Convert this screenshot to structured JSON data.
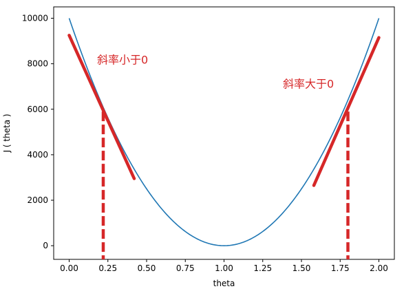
{
  "chart_data": {
    "type": "line",
    "title": "",
    "xlabel": "theta",
    "ylabel": "J ( theta )",
    "xlim": [
      -0.1,
      2.1
    ],
    "ylim": [
      -600,
      10500
    ],
    "x_ticks": [
      0.0,
      0.25,
      0.5,
      0.75,
      1.0,
      1.25,
      1.5,
      1.75,
      2.0
    ],
    "x_tick_labels": [
      "0.00",
      "0.25",
      "0.50",
      "0.75",
      "1.00",
      "1.25",
      "1.50",
      "1.75",
      "2.00"
    ],
    "y_ticks": [
      0,
      2000,
      4000,
      6000,
      8000,
      10000
    ],
    "y_tick_labels": [
      "0",
      "2000",
      "4000",
      "6000",
      "8000",
      "10000"
    ],
    "grid": false,
    "series": [
      {
        "color": "#1f77b4",
        "function": "10000*(x-1)^2",
        "x_range": [
          0,
          2
        ]
      }
    ],
    "tangent_lines": [
      {
        "x": [
          0.0,
          0.42
        ],
        "y": [
          9250,
          2950
        ],
        "color": "#d62728"
      },
      {
        "x": [
          1.58,
          2.0
        ],
        "y": [
          2650,
          9150
        ],
        "color": "#d62728"
      }
    ],
    "dashed_lines": [
      {
        "x": 0.22,
        "y_top": 5900,
        "color": "#d62728"
      },
      {
        "x": 1.8,
        "y_top": 5900,
        "color": "#d62728"
      }
    ],
    "annotations": [
      {
        "text": "斜率小于0",
        "x": 0.18,
        "y": 8000,
        "color": "#d62728"
      },
      {
        "text": "斜率大于0",
        "x": 1.38,
        "y": 6950,
        "color": "#d62728"
      }
    ]
  }
}
